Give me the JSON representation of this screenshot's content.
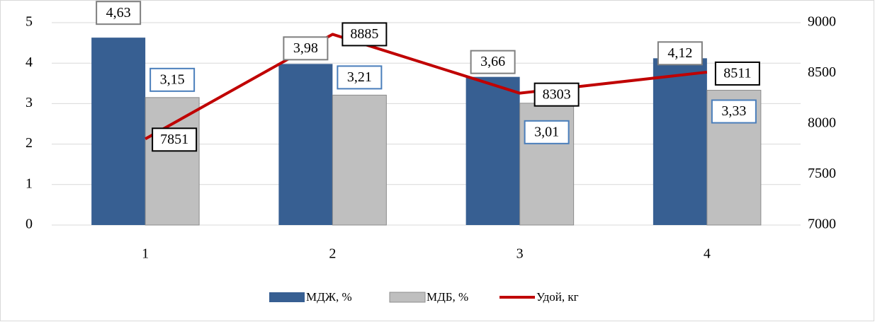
{
  "chart_data": {
    "type": "bar_line",
    "categories": [
      "1",
      "2",
      "3",
      "4"
    ],
    "series": [
      {
        "name": "МДЖ, %",
        "type": "bar",
        "color": "#375f92",
        "values": [
          4.63,
          3.98,
          3.66,
          4.12
        ],
        "value_labels": [
          "4,63",
          "3,98",
          "3,66",
          "4,12"
        ]
      },
      {
        "name": "МДБ, %",
        "type": "bar",
        "color": "#bfbfbf",
        "values": [
          3.15,
          3.21,
          3.01,
          3.33
        ],
        "value_labels": [
          "3,15",
          "3,21",
          "3,01",
          "3,33"
        ]
      },
      {
        "name": "Удой, кг",
        "type": "line",
        "axis": "y2",
        "color": "#c00000",
        "values": [
          7851,
          8885,
          8303,
          8511
        ]
      }
    ],
    "ylim": [
      0,
      5
    ],
    "yticks": [
      0,
      1,
      2,
      3,
      4,
      5
    ],
    "y2lim": [
      7000,
      9000
    ],
    "y2ticks": [
      7000,
      7500,
      8000,
      8500,
      9000
    ],
    "grid": true,
    "legend": "bottom"
  }
}
